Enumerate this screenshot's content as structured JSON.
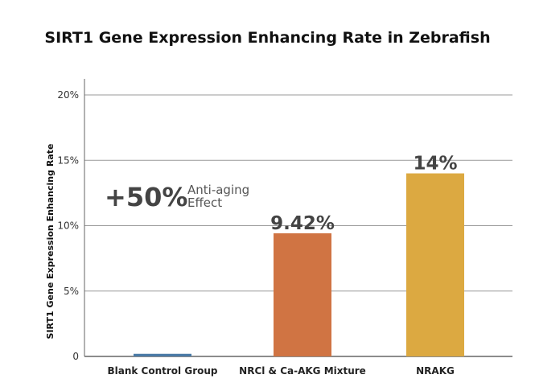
{
  "chart_data": {
    "type": "bar",
    "title": "SIRT1 Gene Expression Enhancing Rate in Zebrafish",
    "xlabel": "",
    "ylabel": "SIRT1 Gene Expression Enhancing Rate",
    "ylim": [
      0,
      20
    ],
    "yticks": [
      0,
      5,
      10,
      15,
      20
    ],
    "ytick_labels": [
      "0",
      "5%",
      "10%",
      "15%",
      "20%"
    ],
    "grid": true,
    "categories": [
      "Blank Control Group",
      "NRCl & Ca-AKG Mixture",
      "NRAKG"
    ],
    "values": [
      0.2,
      9.42,
      14
    ],
    "data_labels": [
      "",
      "9.42%",
      "14%"
    ],
    "colors": [
      "#4a7aa6",
      "#d07443",
      "#dca941"
    ],
    "annotation": {
      "big": "+50%",
      "line1": "Anti-aging",
      "line2": "Effect"
    }
  }
}
